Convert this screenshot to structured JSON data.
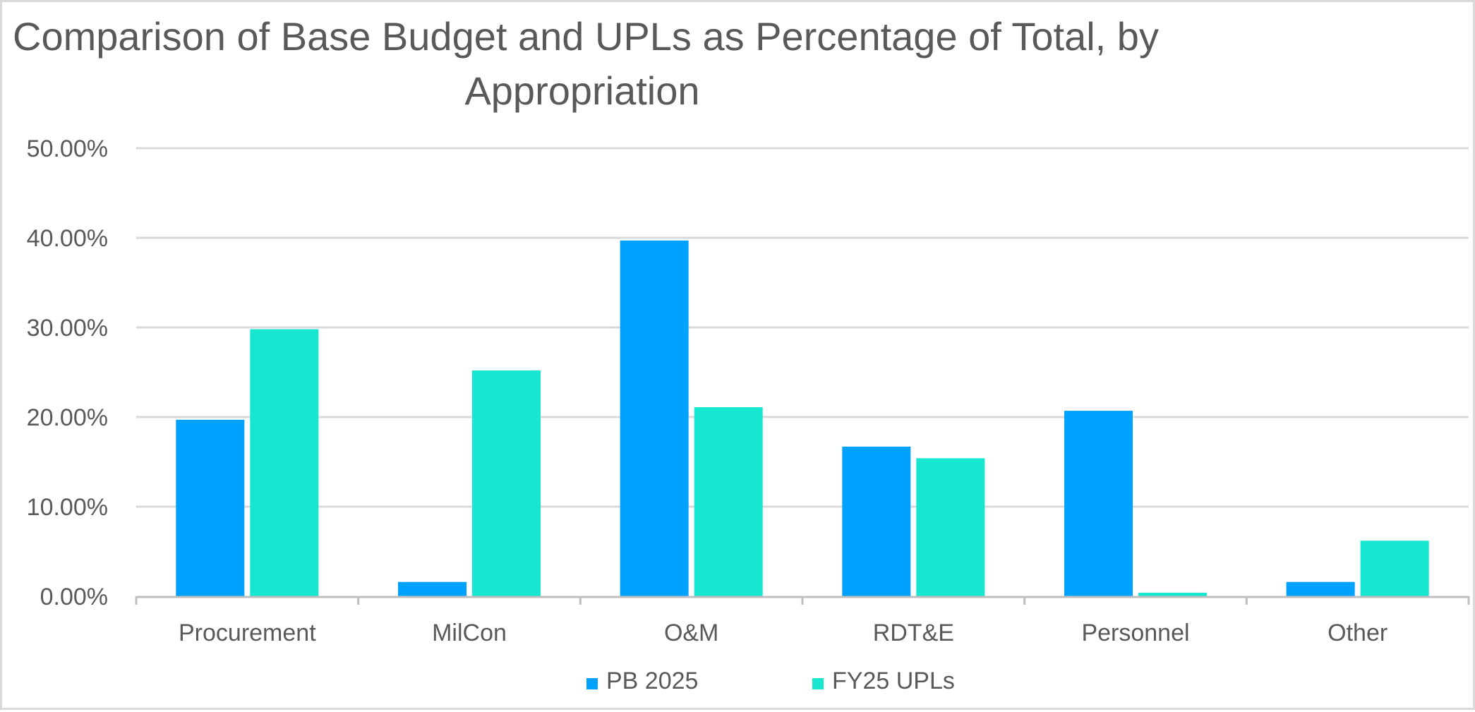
{
  "chart_data": {
    "type": "bar",
    "title_lines": [
      "Comparison of Base Budget and UPLs as Percentage of Total, by",
      "Appropriation"
    ],
    "categories": [
      "Procurement",
      "MilCon",
      "O&M",
      "RDT&E",
      "Personnel",
      "Other"
    ],
    "series": [
      {
        "name": "PB 2025",
        "color": "#00a2ff",
        "values": [
          19.7,
          1.6,
          39.7,
          16.7,
          20.7,
          1.6
        ]
      },
      {
        "name": "FY25 UPLs",
        "color": "#17e6d0",
        "values": [
          29.8,
          25.2,
          21.1,
          15.4,
          0.4,
          6.2
        ]
      }
    ],
    "ylim": [
      0,
      50
    ],
    "yticks": [
      0,
      10,
      20,
      30,
      40,
      50
    ],
    "ytick_labels": [
      "0.00%",
      "10.00%",
      "20.00%",
      "30.00%",
      "40.00%",
      "50.00%"
    ],
    "grid": true,
    "legend_position": "bottom-center",
    "xlabel": "",
    "ylabel": ""
  },
  "colors": {
    "grid": "#d9d9d9",
    "axis": "#bfbfbf",
    "text": "#595959"
  }
}
